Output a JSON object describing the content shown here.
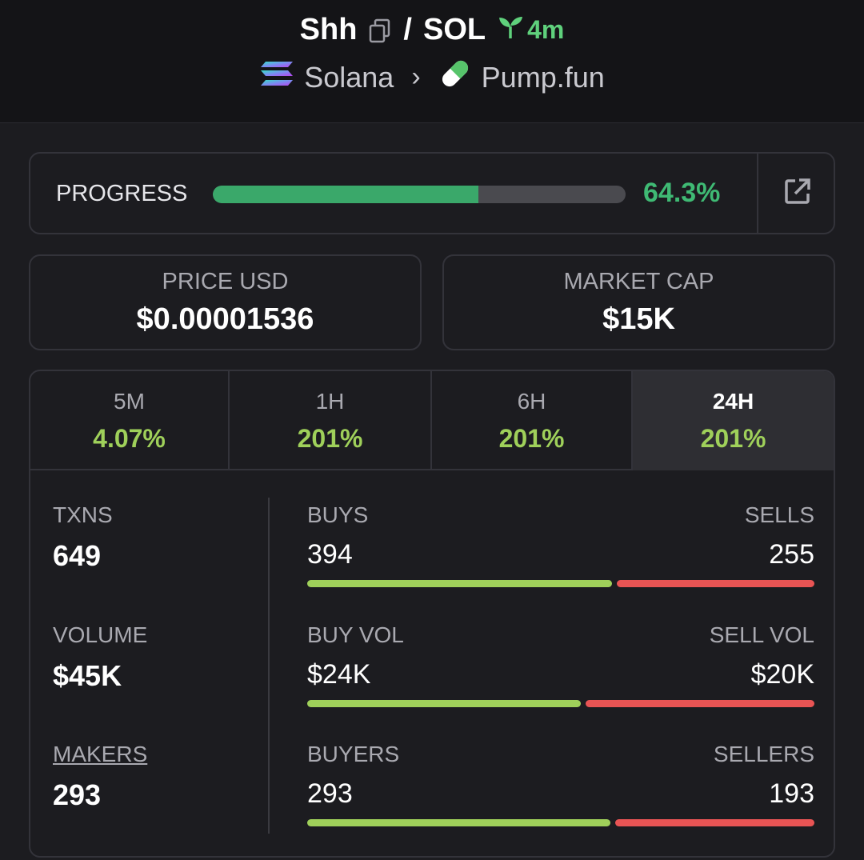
{
  "header": {
    "token": "Shh",
    "separator": "/",
    "quote": "SOL",
    "age": "4m",
    "chain": "Solana",
    "dex": "Pump.fun"
  },
  "progress": {
    "label": "PROGRESS",
    "value_text": "64.3%",
    "fraction": 0.643
  },
  "stats": {
    "price": {
      "label": "PRICE USD",
      "value": "$0.00001536"
    },
    "market_cap": {
      "label": "MARKET CAP",
      "value": "$15K"
    }
  },
  "tabs": [
    {
      "label": "5M",
      "value": "4.07%"
    },
    {
      "label": "1H",
      "value": "201%"
    },
    {
      "label": "6H",
      "value": "201%"
    },
    {
      "label": "24H",
      "value": "201%",
      "active": true
    }
  ],
  "left": {
    "txns": {
      "label": "TXNS",
      "value": "649"
    },
    "volume": {
      "label": "VOLUME",
      "value": "$45K"
    },
    "makers": {
      "label": "MAKERS",
      "value": "293"
    }
  },
  "pairs": {
    "txns": {
      "left_label": "BUYS",
      "right_label": "SELLS",
      "left_value": "394",
      "right_value": "255",
      "left_fraction": 0.607
    },
    "volume": {
      "left_label": "BUY VOL",
      "right_label": "SELL VOL",
      "left_value": "$24K",
      "right_value": "$20K",
      "left_fraction": 0.545
    },
    "makers": {
      "left_label": "BUYERS",
      "right_label": "SELLERS",
      "left_value": "293",
      "right_value": "193",
      "left_fraction": 0.603
    }
  },
  "colors": {
    "accent_green": "#3aa86a",
    "buy": "#9fd05a",
    "sell": "#e85454",
    "background": "#1c1c20"
  },
  "icons": {
    "copy": "copy-icon",
    "sprout": "sprout-icon",
    "chain": "solana-logo-icon",
    "dex": "pill-icon",
    "external": "external-link-icon"
  }
}
